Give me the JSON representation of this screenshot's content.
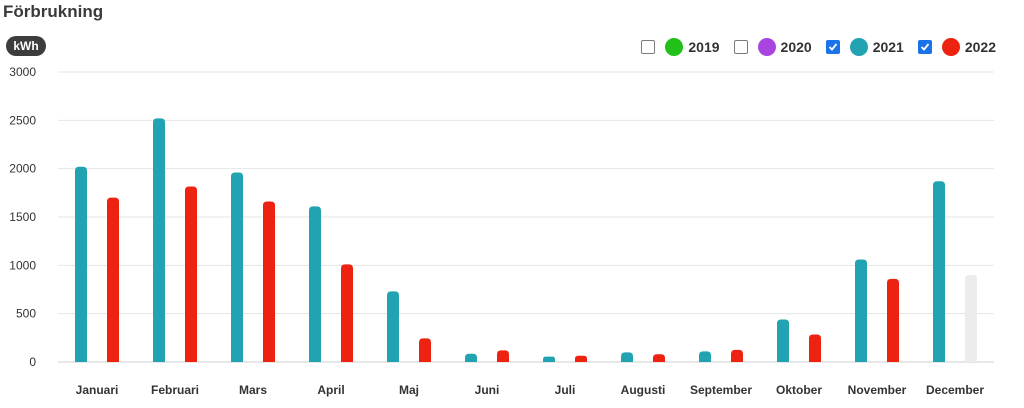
{
  "header": {
    "title": "Förbrukning",
    "unit": "kWh"
  },
  "legend": [
    {
      "label": "2019",
      "checked": false,
      "color": "#22c018"
    },
    {
      "label": "2020",
      "checked": false,
      "color": "#a845e0"
    },
    {
      "label": "2021",
      "checked": true,
      "color": "#21a3b2"
    },
    {
      "label": "2022",
      "checked": true,
      "color": "#ee2211"
    }
  ],
  "chart_data": {
    "type": "bar",
    "ylim": [
      0,
      3000
    ],
    "yticks": [
      0,
      500,
      1000,
      1500,
      2000,
      2500,
      3000
    ],
    "grid": true,
    "categories": [
      "Januari",
      "Februari",
      "Mars",
      "April",
      "Maj",
      "Juni",
      "Juli",
      "Augusti",
      "September",
      "Oktober",
      "November",
      "December"
    ],
    "series": [
      {
        "name": "2021",
        "color": "#21a3b2",
        "values": [
          2020,
          2520,
          1960,
          1610,
          730,
          85,
          55,
          100,
          110,
          440,
          1060,
          1870
        ]
      },
      {
        "name": "2022",
        "color": "#ee2211",
        "incomplete_color": "#ececec",
        "values": [
          1700,
          1815,
          1660,
          1010,
          245,
          120,
          65,
          80,
          125,
          285,
          860,
          900
        ],
        "incomplete": [
          false,
          false,
          false,
          false,
          false,
          false,
          false,
          false,
          false,
          false,
          false,
          true
        ]
      }
    ]
  }
}
